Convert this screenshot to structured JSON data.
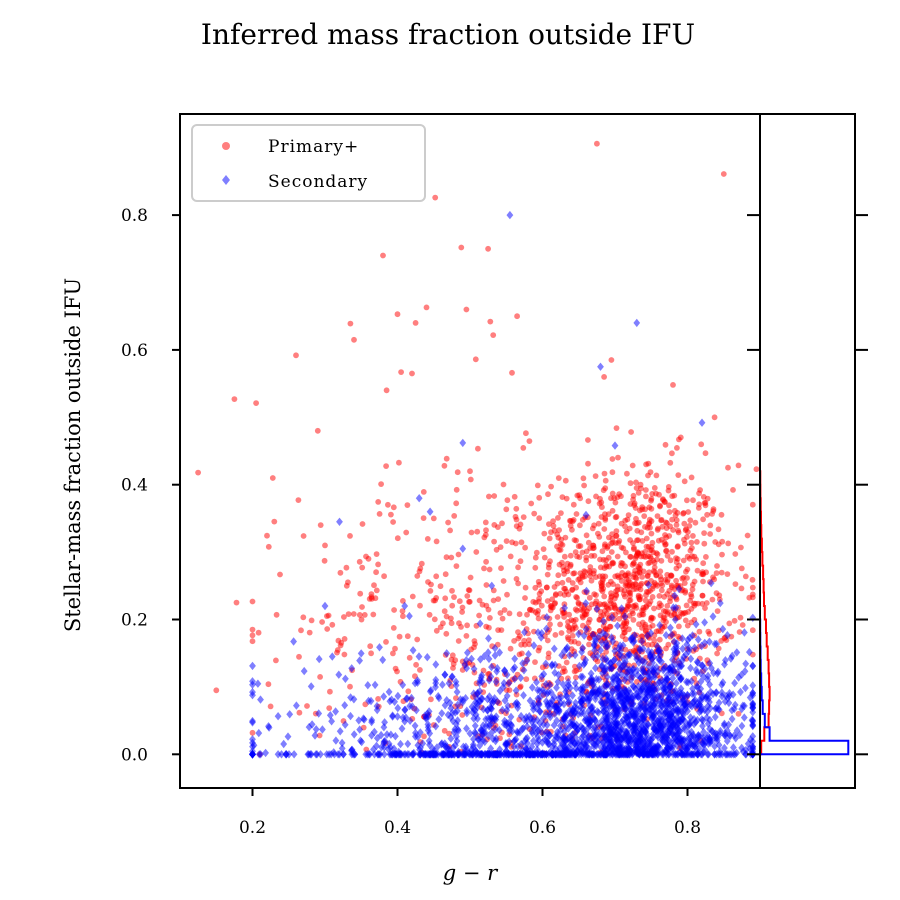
{
  "chart_data": {
    "type": "scatter",
    "title": "Inferred mass fraction outside IFU",
    "xlabel": "g − r",
    "ylabel": "Stellar-mass fraction outside IFU",
    "xlim": [
      0.1,
      0.9
    ],
    "ylim": [
      -0.05,
      0.95
    ],
    "xticks": [
      "0.2",
      "0.4",
      "0.6",
      "0.8"
    ],
    "yticks": [
      "0.0",
      "0.2",
      "0.4",
      "0.6",
      "0.8"
    ],
    "legend": {
      "placement": "top-left",
      "entries": [
        "Primary+",
        "Secondary"
      ]
    },
    "series": [
      {
        "name": "Primary+",
        "marker": "circle",
        "color": "#ff0000",
        "points": [
          [
            0.125,
            0.418
          ],
          [
            0.15,
            0.095
          ],
          [
            0.175,
            0.527
          ],
          [
            0.178,
            0.225
          ],
          [
            0.205,
            0.521
          ],
          [
            0.21,
            0.0
          ],
          [
            0.222,
            0.104
          ],
          [
            0.225,
            0.071
          ],
          [
            0.228,
            0.41
          ],
          [
            0.26,
            0.592
          ],
          [
            0.29,
            0.48
          ],
          [
            0.335,
            0.639
          ],
          [
            0.34,
            0.615
          ],
          [
            0.38,
            0.74
          ],
          [
            0.385,
            0.54
          ],
          [
            0.4,
            0.653
          ],
          [
            0.405,
            0.567
          ],
          [
            0.42,
            0.565
          ],
          [
            0.425,
            0.64
          ],
          [
            0.44,
            0.663
          ],
          [
            0.452,
            0.826
          ],
          [
            0.488,
            0.752
          ],
          [
            0.495,
            0.66
          ],
          [
            0.508,
            0.586
          ],
          [
            0.525,
            0.75
          ],
          [
            0.528,
            0.642
          ],
          [
            0.532,
            0.622
          ],
          [
            0.558,
            0.566
          ],
          [
            0.565,
            0.65
          ],
          [
            0.675,
            0.906
          ],
          [
            0.685,
            0.56
          ],
          [
            0.695,
            0.585
          ],
          [
            0.78,
            0.548
          ],
          [
            0.85,
            0.861
          ],
          [
            0.895,
            0.423
          ],
          [
            0.3,
            0.31
          ],
          [
            0.33,
            0.25
          ],
          [
            0.36,
            0.29
          ],
          [
            0.45,
            0.35
          ],
          [
            0.5,
            0.42
          ]
        ],
        "histogram": {
          "bins": [
            0.0,
            0.02,
            0.04,
            0.06,
            0.08,
            0.1,
            0.12,
            0.14,
            0.16,
            0.18,
            0.2,
            0.22,
            0.24,
            0.26,
            0.28,
            0.3,
            0.32,
            0.34,
            0.36,
            0.38,
            0.4,
            0.42
          ],
          "counts": [
            0.12,
            0.45,
            0.9,
            0.95,
            1.0,
            0.95,
            0.9,
            0.8,
            0.7,
            0.62,
            0.5,
            0.42,
            0.38,
            0.32,
            0.25,
            0.2,
            0.14,
            0.1,
            0.07,
            0.04,
            0.03
          ]
        }
      },
      {
        "name": "Secondary",
        "marker": "diamond",
        "color": "#0000ff",
        "points": [
          [
            0.24,
            0.0
          ],
          [
            0.3,
            0.22
          ],
          [
            0.31,
            0.145
          ],
          [
            0.32,
            0.345
          ],
          [
            0.41,
            0.22
          ],
          [
            0.43,
            0.38
          ],
          [
            0.445,
            0.36
          ],
          [
            0.49,
            0.305
          ],
          [
            0.49,
            0.462
          ],
          [
            0.53,
            0.25
          ],
          [
            0.555,
            0.8
          ],
          [
            0.66,
            0.355
          ],
          [
            0.68,
            0.575
          ],
          [
            0.7,
            0.458
          ],
          [
            0.73,
            0.64
          ],
          [
            0.82,
            0.492
          ],
          [
            0.875,
            0.042
          ],
          [
            0.88,
            0.0
          ]
        ],
        "histogram": {
          "bins": [
            0.0,
            0.02,
            0.04,
            0.06,
            0.08,
            0.1,
            0.12,
            0.14,
            0.16,
            0.18,
            0.2
          ],
          "counts": [
            9.2,
            1.0,
            0.5,
            0.28,
            0.18,
            0.12,
            0.07,
            0.05,
            0.03,
            0.02
          ]
        }
      }
    ],
    "dense_regions": [
      {
        "series": "Primary+",
        "cx": 0.73,
        "cy": 0.25,
        "sx": 0.065,
        "sy": 0.09,
        "n": 900,
        "ymin": 0.0
      },
      {
        "series": "Primary+",
        "cx": 0.55,
        "cy": 0.2,
        "sx": 0.14,
        "sy": 0.11,
        "n": 550,
        "ymin": 0.0
      },
      {
        "series": "Secondary",
        "cx": 0.74,
        "cy": 0.05,
        "sx": 0.07,
        "sy": 0.07,
        "n": 1200,
        "ymin": 0.0
      },
      {
        "series": "Secondary",
        "cx": 0.55,
        "cy": 0.04,
        "sx": 0.15,
        "sy": 0.055,
        "n": 650,
        "ymin": 0.0
      },
      {
        "series": "Secondary",
        "cx": 0.58,
        "cy": 0.0,
        "sx": 0.16,
        "sy": 0.0,
        "n": 420,
        "ymin": 0.0
      }
    ]
  }
}
